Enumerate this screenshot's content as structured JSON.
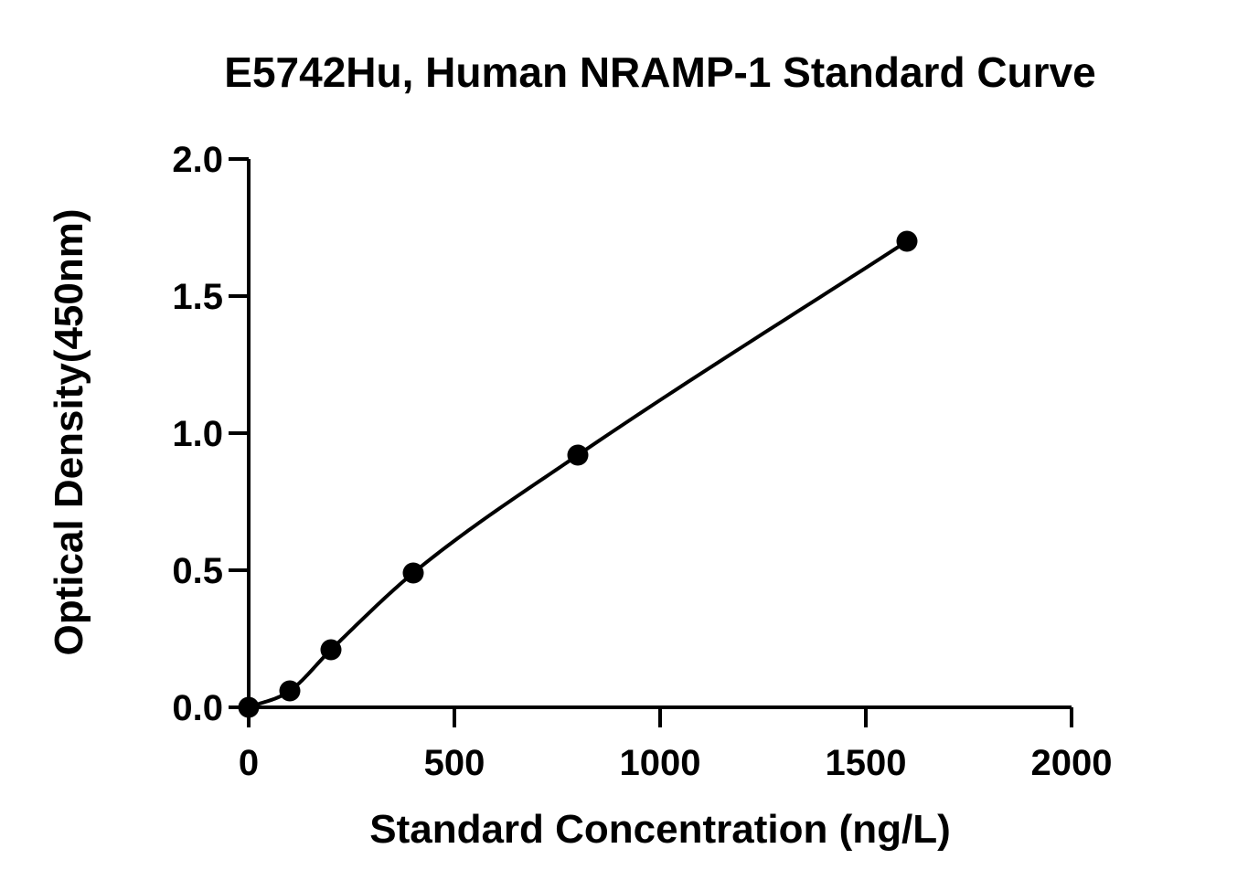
{
  "chart_data": {
    "type": "scatter",
    "title": "E5742Hu, Human NRAMP-1 Standard Curve",
    "xlabel": "Standard Concentration (ng/L)",
    "ylabel": "Optical Density(450nm)",
    "xlim": [
      0,
      2000
    ],
    "ylim": [
      0,
      2.0
    ],
    "x_ticks": [
      0,
      500,
      1000,
      1500,
      2000
    ],
    "x_tick_labels": [
      "0",
      "500",
      "1000",
      "1500",
      "2000"
    ],
    "y_ticks": [
      0,
      0.5,
      1.0,
      1.5,
      2.0
    ],
    "y_tick_labels": [
      "0.0",
      "0.5",
      "1.0",
      "1.5",
      "2.0"
    ],
    "grid": false,
    "series": [
      {
        "points": [
          {
            "x": 0,
            "y": 0.0
          },
          {
            "x": 100,
            "y": 0.06
          },
          {
            "x": 200,
            "y": 0.21
          },
          {
            "x": 400,
            "y": 0.49
          },
          {
            "x": 800,
            "y": 0.92
          },
          {
            "x": 1600,
            "y": 1.7
          }
        ],
        "marker": "filled-circle",
        "color": "#000000",
        "fit_curve": true
      }
    ]
  }
}
